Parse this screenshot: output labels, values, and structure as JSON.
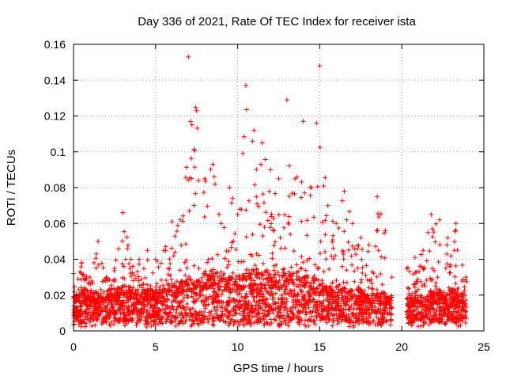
{
  "chart_data": {
    "type": "scatter",
    "title": "Day 336 of 2021, Rate Of TEC Index for receiver ista",
    "xlabel": "GPS time / hours",
    "ylabel": "ROTI / TECUs",
    "xlim": [
      0,
      25
    ],
    "ylim": [
      0,
      0.16
    ],
    "grid": true,
    "marker": "+",
    "color": "#ff0000",
    "xticks": [
      "0",
      "5",
      "10",
      "15",
      "20",
      "25"
    ],
    "yticks": [
      "0",
      "0.02",
      "0.04",
      "0.06",
      "0.08",
      "0.1",
      "0.12",
      "0.14",
      "0.16"
    ],
    "gap": [
      19.4,
      20.3
    ],
    "envelope": [
      [
        0.0,
        0.016,
        0.032
      ],
      [
        0.5,
        0.017,
        0.038
      ],
      [
        1.0,
        0.016,
        0.03
      ],
      [
        1.5,
        0.017,
        0.05
      ],
      [
        2.0,
        0.017,
        0.03
      ],
      [
        2.5,
        0.018,
        0.035
      ],
      [
        3.0,
        0.019,
        0.066
      ],
      [
        3.5,
        0.019,
        0.04
      ],
      [
        4.0,
        0.017,
        0.04
      ],
      [
        4.5,
        0.018,
        0.045
      ],
      [
        5.0,
        0.018,
        0.04
      ],
      [
        5.5,
        0.019,
        0.045
      ],
      [
        6.0,
        0.02,
        0.061
      ],
      [
        6.5,
        0.021,
        0.062
      ],
      [
        7.0,
        0.022,
        0.153
      ],
      [
        7.5,
        0.024,
        0.123
      ],
      [
        8.0,
        0.024,
        0.085
      ],
      [
        8.5,
        0.025,
        0.093
      ],
      [
        9.0,
        0.024,
        0.06
      ],
      [
        9.5,
        0.023,
        0.08
      ],
      [
        10.0,
        0.022,
        0.065
      ],
      [
        10.5,
        0.025,
        0.137
      ],
      [
        11.0,
        0.026,
        0.112
      ],
      [
        11.5,
        0.026,
        0.105
      ],
      [
        12.0,
        0.025,
        0.09
      ],
      [
        12.5,
        0.024,
        0.085
      ],
      [
        13.0,
        0.025,
        0.129
      ],
      [
        13.5,
        0.024,
        0.085
      ],
      [
        14.0,
        0.025,
        0.117
      ],
      [
        14.5,
        0.023,
        0.08
      ],
      [
        15.0,
        0.022,
        0.148
      ],
      [
        15.5,
        0.02,
        0.07
      ],
      [
        16.0,
        0.019,
        0.06
      ],
      [
        16.5,
        0.018,
        0.078
      ],
      [
        17.0,
        0.018,
        0.06
      ],
      [
        17.5,
        0.018,
        0.052
      ],
      [
        18.0,
        0.017,
        0.048
      ],
      [
        18.5,
        0.017,
        0.075
      ],
      [
        19.0,
        0.016,
        0.056
      ],
      [
        19.4,
        0.015,
        0.03
      ],
      [
        20.3,
        0.015,
        0.035
      ],
      [
        20.8,
        0.016,
        0.041
      ],
      [
        21.3,
        0.016,
        0.045
      ],
      [
        21.8,
        0.017,
        0.065
      ],
      [
        22.3,
        0.017,
        0.062
      ],
      [
        22.8,
        0.017,
        0.052
      ],
      [
        23.3,
        0.017,
        0.06
      ],
      [
        23.9,
        0.015,
        0.03
      ]
    ]
  }
}
